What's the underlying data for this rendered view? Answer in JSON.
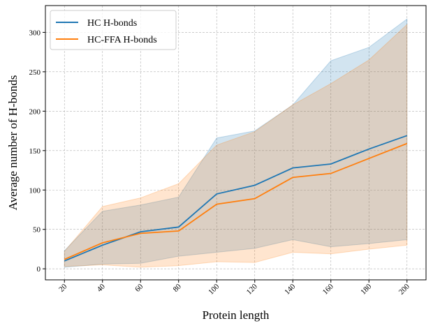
{
  "chart_data": {
    "type": "line",
    "xlabel": "Protein length",
    "ylabel": "Average number of H-bonds",
    "x": [
      20,
      40,
      60,
      80,
      100,
      120,
      140,
      160,
      180,
      200
    ],
    "xlim": [
      10,
      210
    ],
    "ylim": [
      -14,
      334
    ],
    "yticks": [
      0,
      50,
      100,
      150,
      200,
      250,
      300
    ],
    "grid": true,
    "legend_position": "top-left",
    "series": [
      {
        "name": "HC H-bonds",
        "color": "#1f77b4",
        "mean": [
          10,
          30,
          47,
          53,
          95,
          106,
          128,
          133,
          152,
          169
        ],
        "lower": [
          2,
          6,
          7,
          16,
          21,
          26,
          37,
          28,
          32,
          37
        ],
        "upper": [
          23,
          73,
          81,
          91,
          166,
          175,
          208,
          264,
          281,
          317
        ]
      },
      {
        "name": "HC-FFA H-bonds",
        "color": "#ff7f0e",
        "mean": [
          12,
          33,
          45,
          48,
          82,
          89,
          116,
          121,
          140,
          159
        ],
        "lower": [
          3,
          5,
          2,
          4,
          9,
          8,
          21,
          19,
          25,
          30
        ],
        "upper": [
          22,
          79,
          90,
          108,
          157,
          174,
          208,
          235,
          265,
          310
        ]
      }
    ]
  }
}
